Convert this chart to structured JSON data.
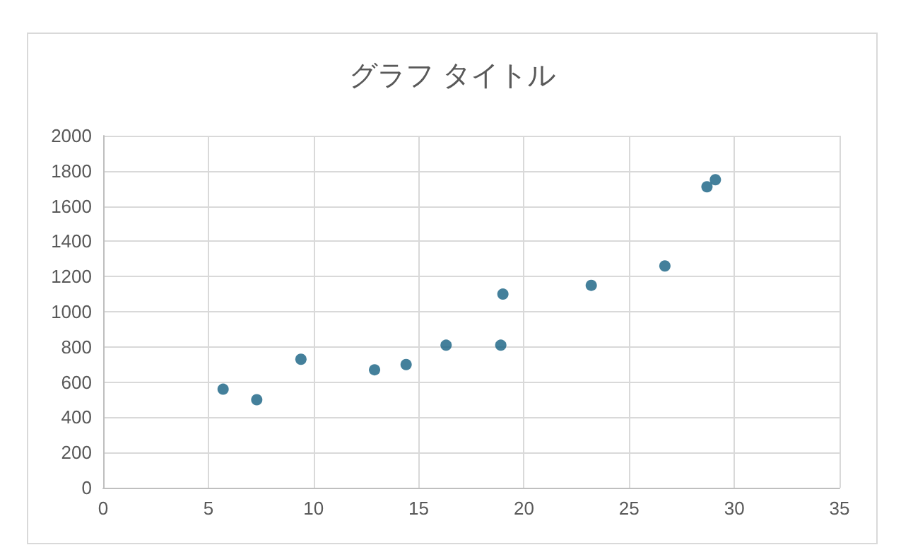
{
  "chart_data": {
    "type": "scatter",
    "title": "グラフ タイトル",
    "x": [
      5.7,
      7.3,
      9.4,
      12.9,
      14.4,
      16.3,
      18.9,
      19.0,
      23.2,
      26.7,
      28.7,
      29.1
    ],
    "series": [
      {
        "color": "#156082",
        "values": [
          560,
          500,
          730,
          670,
          700,
          810,
          810,
          1100,
          1150,
          1260,
          1710,
          1750
        ]
      }
    ],
    "xlim": [
      0,
      35
    ],
    "xticks": [
      0,
      5,
      10,
      15,
      20,
      25,
      30,
      35
    ],
    "ylim": [
      0,
      2000
    ],
    "yticks": [
      0,
      200,
      400,
      600,
      800,
      1000,
      1200,
      1400,
      1600,
      1800,
      2000
    ],
    "grid": true,
    "marker": "circle"
  }
}
